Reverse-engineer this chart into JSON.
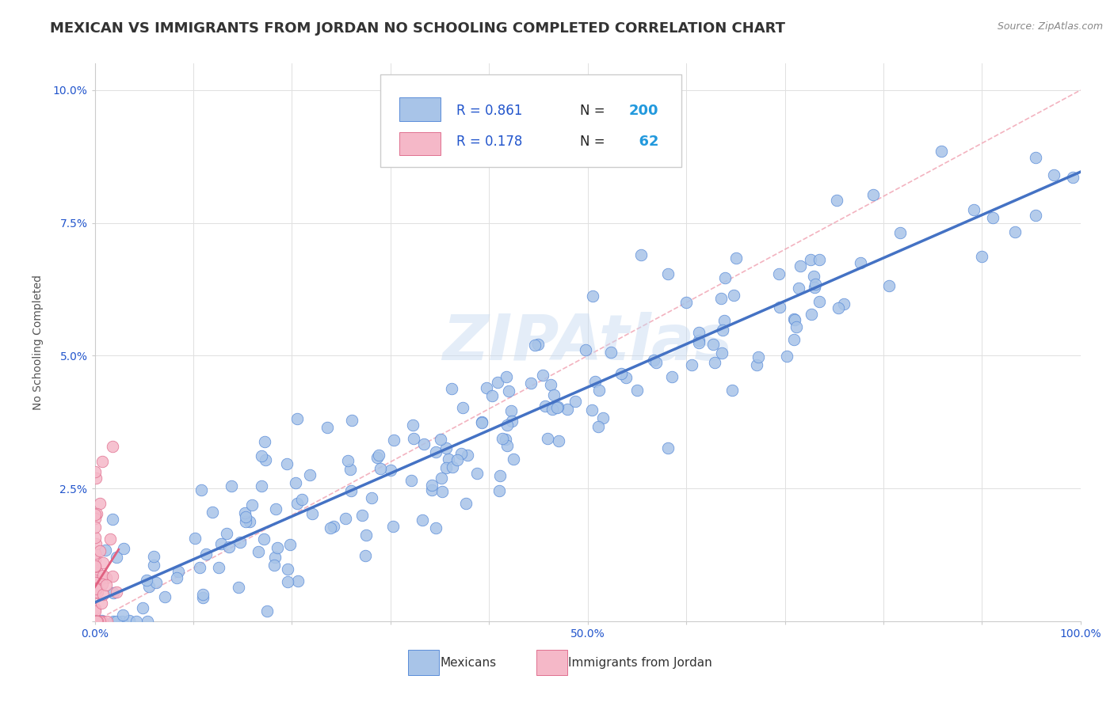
{
  "title": "MEXICAN VS IMMIGRANTS FROM JORDAN NO SCHOOLING COMPLETED CORRELATION CHART",
  "source": "Source: ZipAtlas.com",
  "ylabel": "No Schooling Completed",
  "xlim": [
    0.0,
    1.0
  ],
  "ylim": [
    0.0,
    0.105
  ],
  "blue_color": "#a8c4e8",
  "blue_edge_color": "#5b8dd9",
  "pink_color": "#f5b8c8",
  "pink_edge_color": "#e07090",
  "blue_line_color": "#4472c4",
  "pink_line_color": "#e06080",
  "diag_color": "#f0a0b0",
  "watermark": "ZIPAtlas",
  "blue_R": 0.861,
  "blue_N": 200,
  "pink_R": 0.178,
  "pink_N": 62,
  "grid_color": "#e0e0e0",
  "background_color": "#ffffff",
  "title_fontsize": 13,
  "axis_label_fontsize": 10,
  "tick_fontsize": 10,
  "legend_text_color": "#2255cc",
  "legend_N_color": "#2299dd",
  "legend_label_color": "#222222"
}
